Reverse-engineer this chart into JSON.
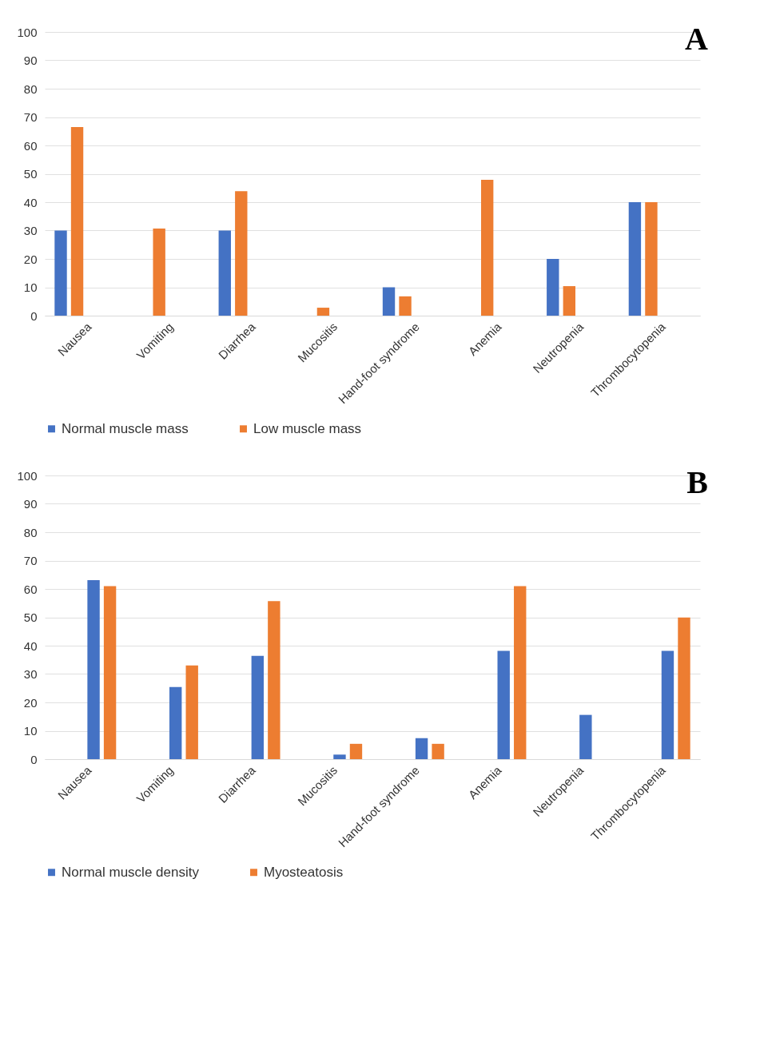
{
  "chart_data": [
    {
      "type": "bar",
      "categories": [
        "Nausea",
        "Vomiting",
        "Diarrhea",
        "Mucositis",
        "Hand-foot syndrome",
        "Anemia",
        "Neutropenia",
        "Thrombocytopenia"
      ],
      "series": [
        {
          "name": "Normal muscle mass",
          "color": "#4472c4",
          "values": [
            30,
            0,
            30,
            0,
            10,
            0,
            20,
            40
          ]
        },
        {
          "name": "Low muscle mass",
          "color": "#ed7d31",
          "values": [
            66.5,
            30.7,
            43.9,
            2.8,
            6.8,
            47.9,
            10.4,
            40
          ]
        }
      ],
      "ylim": [
        0,
        100
      ],
      "yticks": [
        0,
        10,
        20,
        30,
        40,
        50,
        60,
        70,
        80,
        90,
        100
      ],
      "grid": "y",
      "legend": "bottom",
      "annotations": [
        "A"
      ]
    },
    {
      "type": "bar",
      "categories": [
        "Nausea",
        "Vomiting",
        "Diarrhea",
        "Mucositis",
        "Hand-foot syndrome",
        "Anemia",
        "Neutropenia",
        "Thrombocytopenia"
      ],
      "series": [
        {
          "name": "Normal muscle density",
          "color": "#4472c4",
          "values": [
            63.1,
            25.4,
            36.4,
            1.6,
            7.4,
            38.2,
            15.6,
            38.2
          ]
        },
        {
          "name": "Myosteatosis",
          "color": "#ed7d31",
          "values": [
            61,
            33,
            55.7,
            5.4,
            5.4,
            61,
            0,
            49.9
          ]
        }
      ],
      "ylim": [
        0,
        100
      ],
      "yticks": [
        0,
        10,
        20,
        30,
        40,
        50,
        60,
        70,
        80,
        90,
        100
      ],
      "grid": "y",
      "legend": "bottom",
      "annotations": [
        "B"
      ]
    }
  ]
}
